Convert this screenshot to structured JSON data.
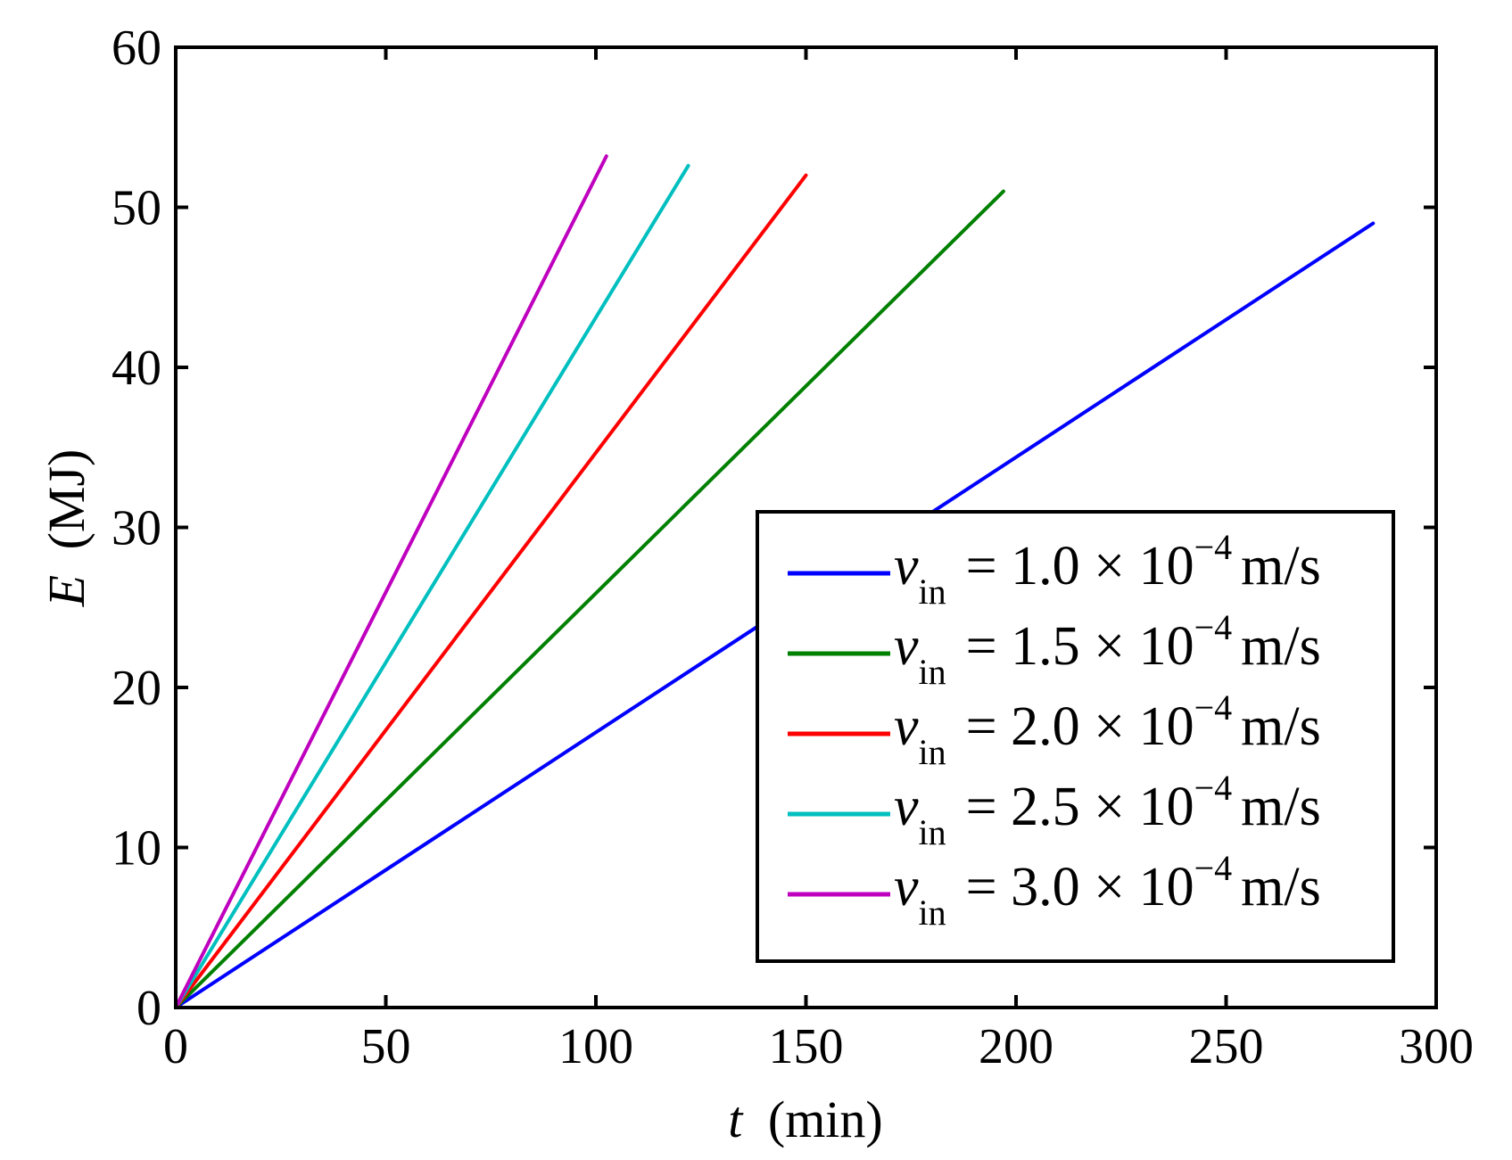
{
  "chart_data": {
    "type": "line",
    "title": "",
    "xlabel": {
      "symbol": "t",
      "unit": "(min)"
    },
    "ylabel": {
      "symbol": "E",
      "unit": "(MJ)"
    },
    "xlim": [
      0,
      300
    ],
    "ylim": [
      0,
      60
    ],
    "xticks": [
      0,
      50,
      100,
      150,
      200,
      250,
      300
    ],
    "yticks": [
      0,
      10,
      20,
      30,
      40,
      50,
      60
    ],
    "grid": false,
    "legend_position": "bottom-right",
    "series": [
      {
        "name": "v_in = 1.0×10^−4 m/s",
        "label": {
          "v": "v",
          "sub": "in",
          "eq": "= 1.0 × 10",
          "exp": "−4",
          "unit": "m/s"
        },
        "color": "#0000ff",
        "points": [
          [
            0,
            0
          ],
          [
            285,
            49
          ]
        ]
      },
      {
        "name": "v_in = 1.5×10^−4 m/s",
        "label": {
          "v": "v",
          "sub": "in",
          "eq": "= 1.5 × 10",
          "exp": "−4",
          "unit": "m/s"
        },
        "color": "#008000",
        "points": [
          [
            0,
            0
          ],
          [
            197,
            51
          ]
        ]
      },
      {
        "name": "v_in = 2.0×10^−4 m/s",
        "label": {
          "v": "v",
          "sub": "in",
          "eq": "= 2.0 × 10",
          "exp": "−4",
          "unit": "m/s"
        },
        "color": "#ff0000",
        "points": [
          [
            0,
            0
          ],
          [
            150,
            52
          ]
        ]
      },
      {
        "name": "v_in = 2.5×10^−4 m/s",
        "label": {
          "v": "v",
          "sub": "in",
          "eq": "= 2.5 × 10",
          "exp": "−4",
          "unit": "m/s"
        },
        "color": "#00bfbf",
        "points": [
          [
            0,
            0
          ],
          [
            122,
            52.6
          ]
        ]
      },
      {
        "name": "v_in = 3.0×10^−4 m/s",
        "label": {
          "v": "v",
          "sub": "in",
          "eq": "= 3.0 × 10",
          "exp": "−4",
          "unit": "m/s"
        },
        "color": "#bf00bf",
        "points": [
          [
            0,
            0
          ],
          [
            102.5,
            53.2
          ]
        ]
      }
    ]
  }
}
